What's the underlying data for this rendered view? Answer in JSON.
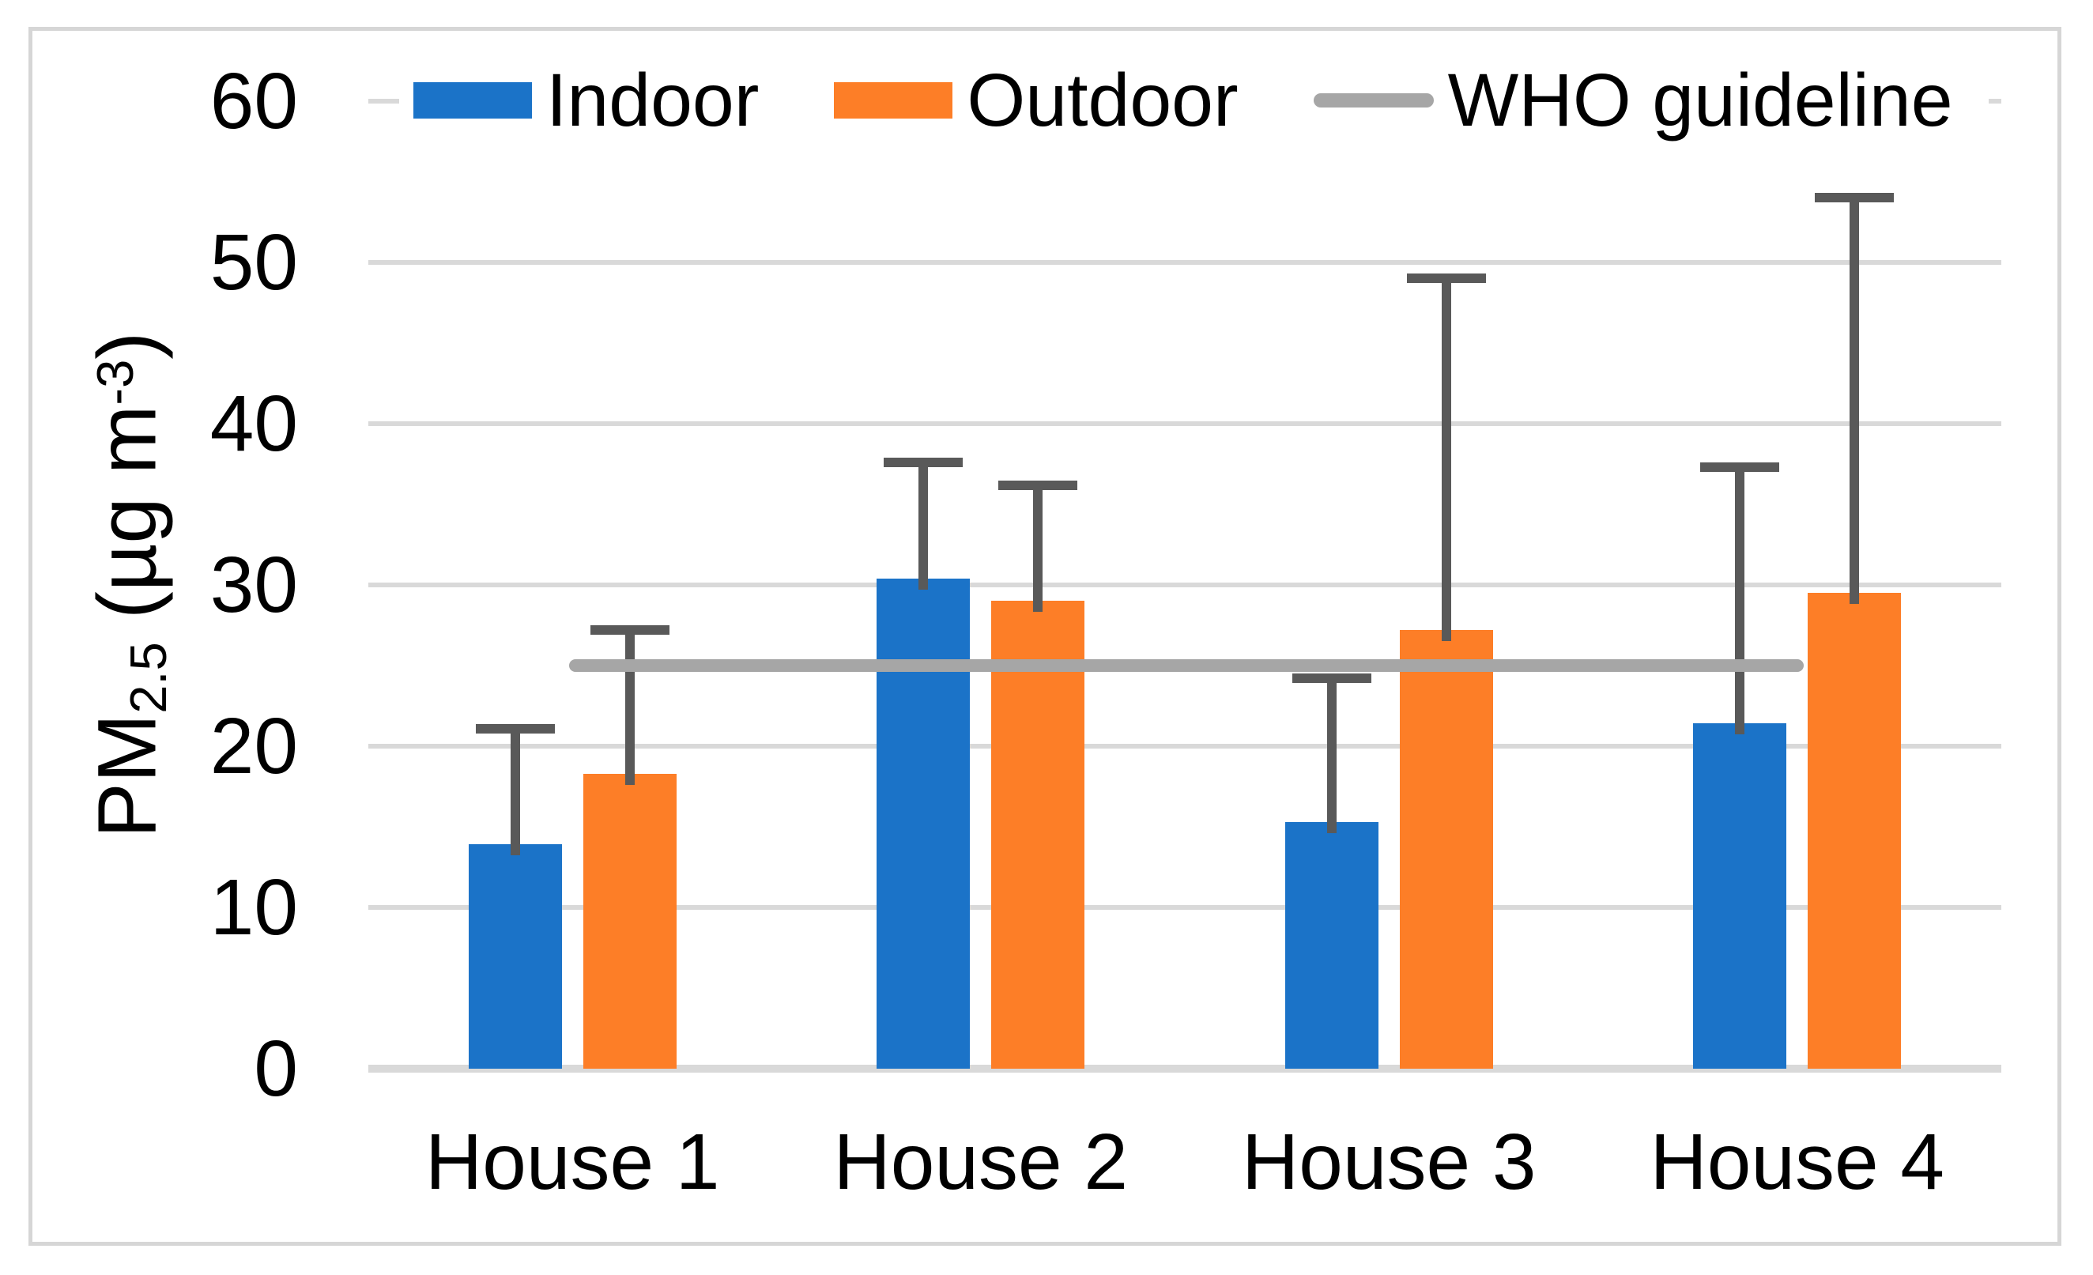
{
  "figure": {
    "background_color": "#ffffff",
    "border_color": "#d6d6d6"
  },
  "legend": {
    "items": [
      {
        "label": "Indoor",
        "marker": "rect",
        "color": "#1b73c8"
      },
      {
        "label": "Outdoor",
        "marker": "rect",
        "color": "#fd7e27"
      },
      {
        "label": "WHO guideline",
        "marker": "line",
        "color": "#a6a6a6"
      }
    ]
  },
  "y_axis": {
    "title_parts": {
      "pm": "PM",
      "sub": "2.5",
      "mid": " (µg m",
      "sup": "-3",
      "close": ")"
    },
    "tick_labels": [
      "0",
      "10",
      "20",
      "30",
      "40",
      "50",
      "60"
    ]
  },
  "chart_data": {
    "type": "bar",
    "categories": [
      "House 1",
      "House 2",
      "House 3",
      "House 4"
    ],
    "series": [
      {
        "name": "Indoor",
        "color": "#1b73c8",
        "values": [
          13.9,
          30.4,
          15.3,
          21.4
        ],
        "error_top": [
          21.1,
          37.6,
          24.2,
          37.3
        ]
      },
      {
        "name": "Outdoor",
        "color": "#fd7e27",
        "values": [
          18.3,
          29.0,
          27.2,
          29.5
        ],
        "error_top": [
          27.2,
          36.2,
          49.0,
          54.0
        ]
      }
    ],
    "reference_line": {
      "label": "WHO guideline",
      "value": 25,
      "color": "#a6a6a6"
    },
    "error_bar_color": "#595959",
    "gridline_color": "#d9d9d9",
    "title": "",
    "xlabel": "",
    "ylabel": "PM2.5 (µg m-3)",
    "ylim": [
      0,
      60
    ],
    "y_ticks": [
      0,
      10,
      20,
      30,
      40,
      50,
      60
    ],
    "grid": true,
    "legend_position": "top"
  }
}
